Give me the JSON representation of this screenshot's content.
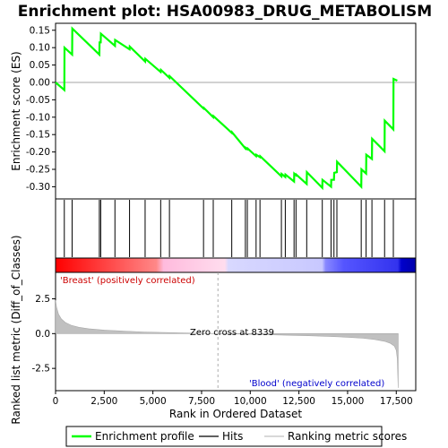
{
  "chart_data": {
    "type": "line",
    "title": "Enrichment plot: HSA00983_DRUG_METABOLISM",
    "ylabel_top": "Enrichment score (ES)",
    "ylabel_bottom": "Ranked list metric (Diff_of_Classes)",
    "xlabel": "Rank in Ordered Dataset",
    "xlim": [
      0,
      18500
    ],
    "es_ylim": [
      -0.335,
      0.17
    ],
    "metric_ylim": [
      -4.1,
      4.4
    ],
    "x_ticks": [
      0,
      2500,
      5000,
      7500,
      10000,
      12500,
      15000,
      17500
    ],
    "x_tick_labels": [
      "0",
      "2,500",
      "5,000",
      "7,500",
      "10,000",
      "12,500",
      "15,000",
      "17,500"
    ],
    "es_ticks": [
      0.15,
      0.1,
      0.05,
      0.0,
      -0.05,
      -0.1,
      -0.15,
      -0.2,
      -0.25,
      -0.3
    ],
    "es_tick_labels": [
      "0.15",
      "0.10",
      "0.05",
      "0.00",
      "-0.05",
      "-0.10",
      "-0.15",
      "-0.20",
      "-0.25",
      "-0.30"
    ],
    "metric_ticks": [
      2.5,
      0.0,
      -2.5
    ],
    "metric_tick_labels": [
      "2.5",
      "0.0",
      "-2.5"
    ],
    "series": [
      {
        "name": "Enrichment profile",
        "color": "#00ff00",
        "x": [
          0,
          450,
          460,
          850,
          860,
          2250,
          2260,
          2320,
          2330,
          3050,
          3060,
          3800,
          3810,
          4600,
          4610,
          5400,
          5410,
          5850,
          5860,
          7600,
          7610,
          8100,
          8110,
          9050,
          9060,
          9750,
          9760,
          9850,
          9860,
          10300,
          10310,
          10500,
          10510,
          11600,
          11610,
          11800,
          11810,
          12250,
          12260,
          12350,
          12360,
          12900,
          12910,
          13700,
          13710,
          14150,
          14160,
          14300,
          14310,
          14450,
          14460,
          15700,
          15710,
          15950,
          15960,
          16250,
          16260,
          16900,
          16910,
          17350,
          17360,
          17550
        ],
        "y": [
          0.0,
          -0.022,
          0.1,
          0.08,
          0.155,
          0.08,
          0.115,
          0.115,
          0.14,
          0.105,
          0.122,
          0.095,
          0.103,
          0.06,
          0.068,
          0.03,
          0.036,
          0.013,
          0.018,
          -0.075,
          -0.073,
          -0.1,
          -0.097,
          -0.145,
          -0.143,
          -0.19,
          -0.188,
          -0.192,
          -0.19,
          -0.212,
          -0.208,
          -0.215,
          -0.212,
          -0.27,
          -0.263,
          -0.272,
          -0.265,
          -0.285,
          -0.262,
          -0.267,
          -0.265,
          -0.292,
          -0.258,
          -0.303,
          -0.28,
          -0.3,
          -0.28,
          -0.28,
          -0.26,
          -0.258,
          -0.228,
          -0.3,
          -0.25,
          -0.262,
          -0.208,
          -0.22,
          -0.162,
          -0.198,
          -0.11,
          -0.135,
          0.01,
          0.005
        ]
      }
    ],
    "hits": [
      450,
      850,
      2250,
      2320,
      3050,
      3800,
      4600,
      5400,
      5850,
      7600,
      8100,
      9050,
      9750,
      9850,
      10300,
      10500,
      11600,
      11800,
      12250,
      12350,
      12900,
      13700,
      14150,
      14300,
      14450,
      15700,
      15950,
      16250,
      16900,
      17350
    ],
    "metric_curve": {
      "x": [
        0,
        50,
        150,
        300,
        500,
        800,
        1200,
        1700,
        2500,
        3500,
        4500,
        5500,
        6500,
        7500,
        8339,
        9000,
        10000,
        11000,
        12000,
        13000,
        14000,
        15000,
        15800,
        16400,
        16900,
        17200,
        17400,
        17500,
        17550,
        17600
      ],
      "y": [
        2.4,
        1.9,
        1.4,
        1.05,
        0.8,
        0.6,
        0.45,
        0.35,
        0.25,
        0.18,
        0.12,
        0.08,
        0.05,
        0.02,
        0.0,
        -0.02,
        -0.05,
        -0.08,
        -0.12,
        -0.15,
        -0.2,
        -0.26,
        -0.33,
        -0.42,
        -0.55,
        -0.7,
        -0.9,
        -1.2,
        -1.8,
        -3.9
      ]
    },
    "zero_cross": 8339,
    "zero_cross_label": "Zero cross at 8339",
    "pos_label": "'Breast' (positively correlated)",
    "neg_label": "'Blood' (negatively correlated)",
    "legend": [
      {
        "label": "Enrichment profile",
        "color": "#00ff00"
      },
      {
        "label": "Hits",
        "color": "#000000"
      },
      {
        "label": "Ranking metric scores",
        "color": "#c0c0c0"
      }
    ],
    "colors": {
      "pos_text": "#cc0000",
      "neg_text": "#0000cc",
      "metric_fill": "#c0c0c0",
      "heat_stops": [
        "#ff0000",
        "#ff8888",
        "#ffccee",
        "#e0e0ff",
        "#8888ff",
        "#3333ff",
        "#0000bb"
      ]
    }
  }
}
